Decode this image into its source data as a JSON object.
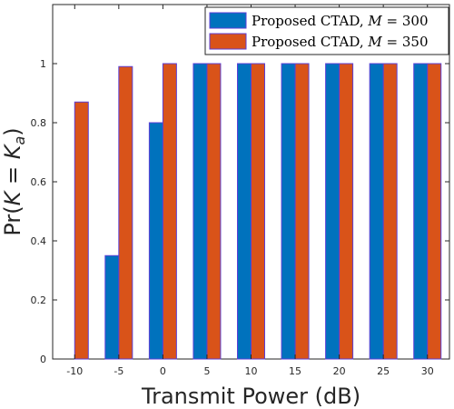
{
  "chart_data": {
    "type": "bar",
    "categories": [
      "-10",
      "-5",
      "0",
      "5",
      "10",
      "15",
      "20",
      "25",
      "30"
    ],
    "series": [
      {
        "name": "Proposed CTAD, M = 300",
        "legend_prefix": "Proposed CTAD, ",
        "legend_var": "M",
        "legend_suffix": " = 300",
        "color": "#0072BD",
        "values": [
          0,
          0.35,
          0.8,
          1,
          1,
          1,
          1,
          1,
          1
        ]
      },
      {
        "name": "Proposed CTAD, M = 350",
        "legend_prefix": "Proposed CTAD, ",
        "legend_var": "M",
        "legend_suffix": " = 350",
        "color": "#D95319",
        "values": [
          0.87,
          0.99,
          1,
          1,
          1,
          1,
          1,
          1,
          1
        ]
      }
    ],
    "xlabel": "Transmit Power (dB)",
    "ylabel": "Pr(K = K_a)",
    "ylabel_parts": {
      "func": "Pr",
      "open": "(",
      "var": "K",
      "eq": " = ",
      "var2": "K",
      "sub": "a",
      "close": ")"
    },
    "ylim": [
      0,
      1.2
    ],
    "yticks": [
      0,
      0.2,
      0.4,
      0.6,
      0.8,
      1
    ],
    "ytick_labels": [
      "0",
      "0.2",
      "0.4",
      "0.6",
      "0.8",
      "1"
    ],
    "grid": false,
    "legend_position": "top-right",
    "edge_color": "#5B3FD6"
  }
}
